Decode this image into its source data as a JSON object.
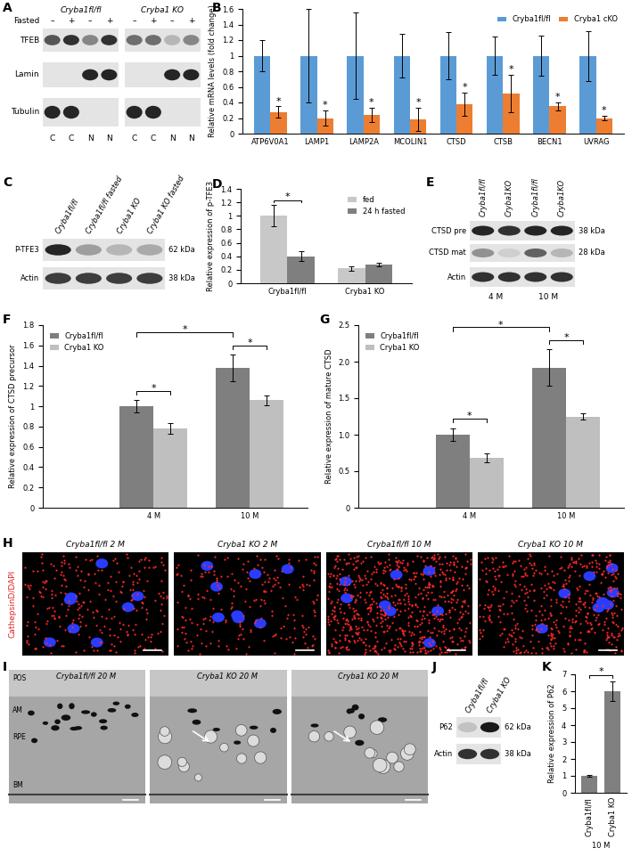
{
  "chart_data": [
    {
      "panel_label": "B",
      "type": "bar",
      "ylabel": "Relative mRNA levels (fold change)",
      "categories": [
        "ATP6V0A1",
        "LAMP1",
        "LAMP2A",
        "MCOLIN1",
        "CTSD",
        "CTSB",
        "BECN1",
        "UVRAG"
      ],
      "series": [
        {
          "name": "Cryba1fl/fl",
          "color": "#5b9bd5",
          "values": [
            1,
            1,
            1,
            1,
            1,
            1,
            1,
            1
          ],
          "errors": [
            0.2,
            0.6,
            0.55,
            0.28,
            0.3,
            0.25,
            0.26,
            0.32
          ]
        },
        {
          "name": "Cryba1 cKO",
          "color": "#ed7d31",
          "values": [
            0.28,
            0.2,
            0.24,
            0.18,
            0.38,
            0.52,
            0.35,
            0.2
          ],
          "errors": [
            0.07,
            0.1,
            0.09,
            0.15,
            0.15,
            0.24,
            0.05,
            0.03
          ]
        }
      ],
      "ylim": [
        0,
        1.6
      ],
      "yticks": [
        0,
        0.2,
        0.4,
        0.6,
        0.8,
        1,
        1.2,
        1.4,
        1.6
      ],
      "legend": "upper right",
      "annotations": [
        {
          "category": "ATP6V0A1",
          "series": "Cryba1 cKO",
          "text": "*"
        },
        {
          "category": "LAMP1",
          "series": "Cryba1 cKO",
          "text": "*"
        },
        {
          "category": "LAMP2A",
          "series": "Cryba1 cKO",
          "text": "*"
        },
        {
          "category": "MCOLIN1",
          "series": "Cryba1 cKO",
          "text": "*"
        },
        {
          "category": "CTSD",
          "series": "Cryba1 cKO",
          "text": "*"
        },
        {
          "category": "CTSB",
          "series": "Cryba1 cKO",
          "text": "*"
        },
        {
          "category": "BECN1",
          "series": "Cryba1 cKO",
          "text": "*"
        },
        {
          "category": "UVRAG",
          "series": "Cryba1 cKO",
          "text": "*"
        }
      ]
    },
    {
      "panel_label": "D",
      "type": "bar",
      "ylabel": "Relative expression of p-TFE3",
      "categories": [
        "Cryba1fl/fl",
        "Cryba1 KO"
      ],
      "series": [
        {
          "name": "fed",
          "color": "#c8c8c8",
          "values": [
            1.0,
            0.22
          ],
          "errors": [
            0.16,
            0.03
          ]
        },
        {
          "name": "24 h fasted",
          "color": "#7f7f7f",
          "values": [
            0.4,
            0.28
          ],
          "errors": [
            0.07,
            0.03
          ]
        }
      ],
      "ylim": [
        0,
        1.4
      ],
      "yticks": [
        0,
        0.2,
        0.4,
        0.6,
        0.8,
        1,
        1.2,
        1.4
      ],
      "legend": "upper right",
      "significance": [
        {
          "from": {
            "category": "Cryba1fl/fl",
            "series": "fed"
          },
          "to": {
            "category": "Cryba1fl/fl",
            "series": "24 h fasted"
          },
          "text": "*"
        }
      ]
    },
    {
      "panel_label": "F",
      "type": "bar",
      "ylabel": "Relative expression of CTSD precursor",
      "categories": [
        "4 M",
        "10 M"
      ],
      "series": [
        {
          "name": "Cryba1fl/fl",
          "color": "#7f7f7f",
          "values": [
            1.0,
            1.38
          ],
          "errors": [
            0.06,
            0.13
          ]
        },
        {
          "name": "Cryba1 KO",
          "color": "#bfbfbf",
          "values": [
            0.78,
            1.06
          ],
          "errors": [
            0.05,
            0.05
          ]
        }
      ],
      "ylim": [
        0,
        1.8
      ],
      "yticks": [
        0,
        0.2,
        0.4,
        0.6,
        0.8,
        1,
        1.2,
        1.4,
        1.6,
        1.8
      ],
      "legend": "upper left",
      "significance": [
        {
          "from": {
            "category": "4 M",
            "series": "Cryba1fl/fl"
          },
          "to": {
            "category": "4 M",
            "series": "Cryba1 KO"
          },
          "text": "*"
        },
        {
          "from": {
            "category": "10 M",
            "series": "Cryba1fl/fl"
          },
          "to": {
            "category": "10 M",
            "series": "Cryba1 KO"
          },
          "text": "*"
        },
        {
          "from": {
            "category": "4 M",
            "series": "Cryba1fl/fl"
          },
          "to": {
            "category": "10 M",
            "series": "Cryba1fl/fl"
          },
          "text": "*"
        }
      ]
    },
    {
      "panel_label": "G",
      "type": "bar",
      "ylabel": "Relative expression of mature CTSD",
      "categories": [
        "4 M",
        "10 M"
      ],
      "series": [
        {
          "name": "Cryba1fl/fl",
          "color": "#7f7f7f",
          "values": [
            1.0,
            1.92
          ],
          "errors": [
            0.09,
            0.25
          ]
        },
        {
          "name": "Cryba1 KO",
          "color": "#bfbfbf",
          "values": [
            0.68,
            1.25
          ],
          "errors": [
            0.06,
            0.04
          ]
        }
      ],
      "ylim": [
        0,
        2.5
      ],
      "yticks": [
        0,
        0.5,
        {
          "value": 1,
          "label": "1.0"
        },
        1.5,
        {
          "value": 2,
          "label": "2.0"
        },
        2.5
      ],
      "legend": "upper left",
      "significance": [
        {
          "from": {
            "category": "4 M",
            "series": "Cryba1fl/fl"
          },
          "to": {
            "category": "4 M",
            "series": "Cryba1 KO"
          },
          "text": "*"
        },
        {
          "from": {
            "category": "10 M",
            "series": "Cryba1fl/fl"
          },
          "to": {
            "category": "10 M",
            "series": "Cryba1 KO"
          },
          "text": "*"
        },
        {
          "from": {
            "category": "4 M",
            "series": "Cryba1fl/fl"
          },
          "to": {
            "category": "10 M",
            "series": "Cryba1fl/fl"
          },
          "text": "*"
        }
      ]
    },
    {
      "panel_label": "K",
      "type": "bar",
      "ylabel": "Relative expression of P62",
      "xlabel": "10 M",
      "categories": [
        "Cryba1fl/fl",
        "Cryba1 KO"
      ],
      "values": [
        1.0,
        6.0
      ],
      "errors": [
        0.05,
        0.6
      ],
      "color": "#808080",
      "ylim": [
        0,
        7
      ],
      "yticks": [
        0,
        1,
        2,
        3,
        4,
        5,
        6,
        7
      ],
      "significance": [
        {
          "from": {
            "category": "Cryba1fl/fl"
          },
          "to": {
            "category": "Cryba1 KO"
          },
          "text": "*"
        }
      ]
    }
  ],
  "images": [
    {
      "panel_label": "A",
      "type": "western_blot",
      "groups": [
        "Cryba1fl/fl",
        "Cryba1 KO"
      ],
      "condition_name": "Fasted",
      "conditions": [
        "–",
        "+",
        "–",
        "+"
      ],
      "rows": [
        "TFEB",
        "Lamin",
        "Tubulin"
      ],
      "lanes": [
        "C",
        "C",
        "N",
        "N"
      ]
    },
    {
      "panel_label": "C",
      "type": "western_blot",
      "lane_labels": [
        "Cryba1fl/fl",
        "Cryba1fl/fl fasted",
        "Cryba1 KO",
        "Cryba1 KO fasted"
      ],
      "rows": [
        "P-TFE3",
        "Actin"
      ],
      "markers": [
        {
          "row": "P-TFE3",
          "label": "62 kDa"
        },
        {
          "row": "Actin",
          "label": "38 kDa"
        }
      ]
    },
    {
      "panel_label": "E",
      "type": "western_blot",
      "lane_labels": [
        "Cryba1fl/fl",
        "Cryba1KO",
        "Cryba1fl/fl",
        "Cryba1KO"
      ],
      "rows": [
        "CTSD pre",
        "CTSD mat",
        "Actin"
      ],
      "markers": [
        {
          "row": "CTSD pre",
          "label": "38 kDa"
        },
        {
          "row": "CTSD mat",
          "label": "28 kDa"
        }
      ],
      "age_labels": [
        "4 M",
        "10 M"
      ]
    },
    {
      "panel_label": "H",
      "type": "fluorescence_micrographs",
      "stain_label": "CathepsinD/DAPI",
      "image_titles": [
        "Cryba1fl/fl 2 M",
        "Cryba1 KO 2 M",
        "Cryba1fl/fl 10 M",
        "Cryba1 KO 10 M"
      ]
    },
    {
      "panel_label": "I",
      "type": "electron_micrographs",
      "image_titles": [
        "Cryba1fl/fl 20 M",
        "Cryba1 KO 20 M",
        "Cryba1 KO 20 M"
      ],
      "layer_labels": [
        "POS",
        "AM",
        "RPE",
        "BM"
      ]
    },
    {
      "panel_label": "J",
      "type": "western_blot",
      "lane_labels": [
        "Cryba1fl/fl",
        "Cryba1 KO"
      ],
      "rows": [
        "P62",
        "Actin"
      ],
      "markers": [
        {
          "row": "P62",
          "label": "62 kDa"
        },
        {
          "row": "Actin",
          "label": "38 kDa"
        }
      ]
    }
  ]
}
